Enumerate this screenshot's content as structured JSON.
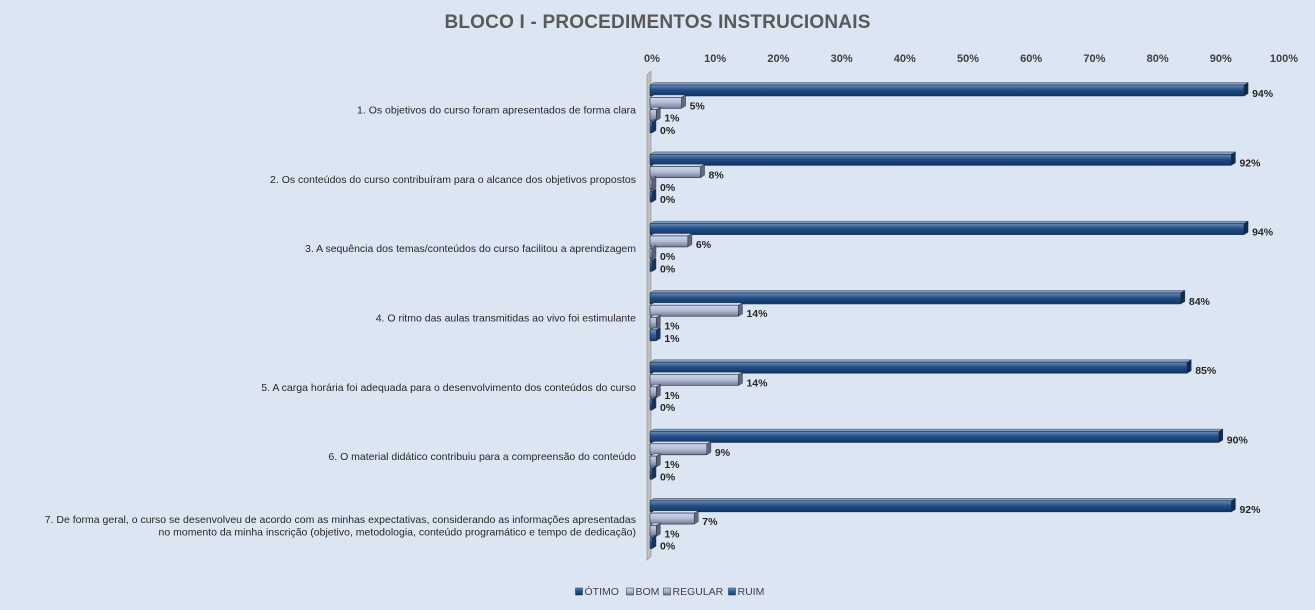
{
  "chart_data": {
    "type": "bar",
    "orientation": "horizontal",
    "title": "BLOCO I - PROCEDIMENTOS  INSTRUCIONAIS",
    "xlim": [
      0,
      100
    ],
    "x_ticks": [
      "0%",
      "10%",
      "20%",
      "30%",
      "40%",
      "50%",
      "60%",
      "70%",
      "80%",
      "90%",
      "100%"
    ],
    "x_axis_position": "top",
    "grid": false,
    "legend_position": "bottom",
    "categories": [
      [
        "1. Os objetivos do curso foram apresentados de forma clara"
      ],
      [
        "2. Os conteúdos do curso contribuíram para o alcance dos objetivos propostos"
      ],
      [
        "3. A sequência dos temas/conteúdos do curso facilitou a aprendizagem"
      ],
      [
        "4. O ritmo das aulas transmitidas ao vivo foi estimulante"
      ],
      [
        "5. A carga horária foi adequada para o desenvolvimento dos conteúdos do curso"
      ],
      [
        "6. O material didático contribuiu para a compreensão do conteúdo"
      ],
      [
        "7. De forma geral, o curso se desenvolveu de acordo com as minhas expectativas, considerando as informações apresentadas",
        "no momento da minha inscrição (objetivo, metodologia, conteúdo programático e tempo de dedicação)"
      ]
    ],
    "series": [
      {
        "name": "ÓTIMO",
        "color": "#1f4e8c",
        "values": [
          94,
          92,
          94,
          84,
          85,
          90,
          92
        ],
        "labels": [
          "94%",
          "92%",
          "94%",
          "84%",
          "85%",
          "90%",
          "92%"
        ]
      },
      {
        "name": "BOM",
        "color": "#b4bfdb",
        "values": [
          5,
          8,
          6,
          14,
          14,
          9,
          7
        ],
        "labels": [
          "5%",
          "8%",
          "6%",
          "14%",
          "14%",
          "9%",
          "7%"
        ]
      },
      {
        "name": "REGULAR",
        "color": "#a7b2d0",
        "values": [
          1,
          0,
          0,
          1,
          1,
          1,
          1
        ],
        "labels": [
          "1%",
          "0%",
          "0%",
          "1%",
          "1%",
          "1%",
          "1%"
        ]
      },
      {
        "name": "RUIM",
        "color": "#2e5fa3",
        "values": [
          0,
          0,
          0,
          1,
          0,
          0,
          0
        ],
        "labels": [
          "0%",
          "0%",
          "0%",
          "1%",
          "0%",
          "0%",
          "0%"
        ]
      }
    ]
  }
}
